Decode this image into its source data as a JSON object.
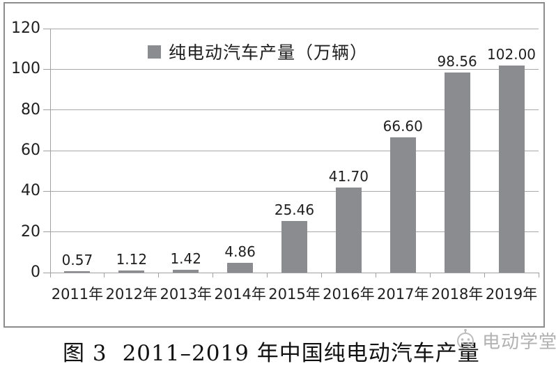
{
  "chart_data": {
    "type": "bar",
    "title": "",
    "legend": [
      "纯电动汽车产量（万辆）"
    ],
    "legend_position": "top-center-inside",
    "categories": [
      "2011年",
      "2012年",
      "2013年",
      "2014年",
      "2015年",
      "2016年",
      "2017年",
      "2018年",
      "2019年"
    ],
    "values": [
      0.57,
      1.12,
      1.42,
      4.86,
      25.46,
      41.7,
      66.6,
      98.56,
      102.0
    ],
    "value_labels": [
      "0.57",
      "1.12",
      "1.42",
      "4.86",
      "25.46",
      "41.70",
      "66.60",
      "98.56",
      "102.00"
    ],
    "xlabel": "",
    "ylabel": "",
    "ylim": [
      0,
      120
    ],
    "yticks": [
      0,
      20,
      40,
      60,
      80,
      100,
      120
    ],
    "grid": true,
    "bar_color": "#8a8c90",
    "gridline_color": "#a8a8a8"
  },
  "caption": {
    "prefix": "图 3",
    "text": "2011–2019 年中国纯电动汽车产量"
  },
  "watermark": {
    "text": "电动学堂"
  },
  "colors": {
    "bar": "#8a8c90",
    "gridline": "#a8a8a8",
    "axis": "#a0a0a0",
    "frame_border": "#8c8c8c",
    "text": "#1f1f1f",
    "watermark": "#b2b2b2"
  }
}
